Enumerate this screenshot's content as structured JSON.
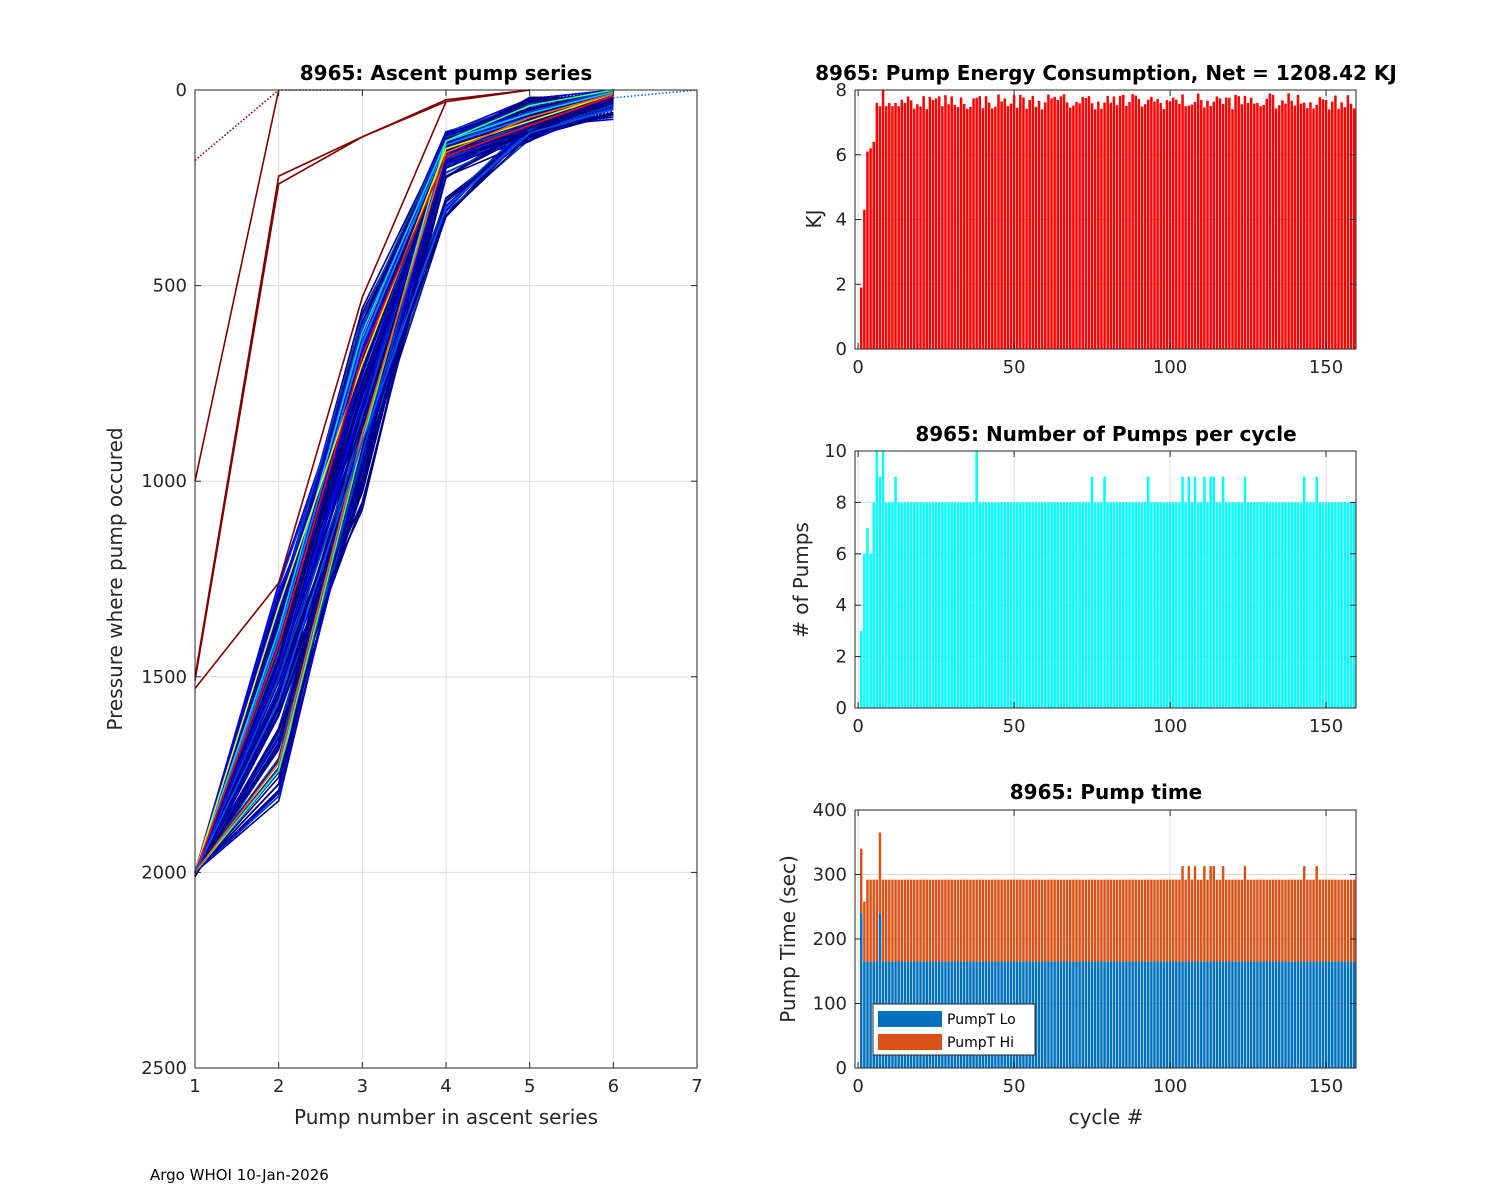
{
  "footer": "Argo WHOI 10-Jan-2026",
  "colors": {
    "energy_bar": "#ff0000",
    "pumps_bar": "#00ffff",
    "pumpt_lo": "#0072bd",
    "pumpt_hi": "#d95319",
    "grid": "#dcdcdc",
    "axis": "#262626"
  },
  "chart_data": [
    {
      "id": "ascent",
      "type": "line",
      "title": "8965: Ascent pump series",
      "xlabel": "Pump number in ascent series",
      "ylabel": "Pressure where pump occured",
      "xlim": [
        1,
        7
      ],
      "ylim": [
        0,
        2500
      ],
      "y_reversed": true,
      "xticks": [
        "1",
        "2",
        "3",
        "4",
        "5",
        "6",
        "7"
      ],
      "yticks": [
        "0",
        "500",
        "1000",
        "1500",
        "2000",
        "2500"
      ],
      "grid": true,
      "colormap": "jet (by cycle)",
      "series": [
        {
          "name": "early-1",
          "color": "#800000",
          "style": "solid",
          "x": [
            1,
            2
          ],
          "y": [
            1000,
            0
          ]
        },
        {
          "name": "early-2",
          "color": "#800000",
          "style": "solid",
          "x": [
            1,
            2,
            3,
            4,
            5
          ],
          "y": [
            1510,
            240,
            120,
            30,
            0
          ]
        },
        {
          "name": "early-3",
          "color": "#800000",
          "style": "solid",
          "x": [
            1,
            2,
            3,
            4
          ],
          "y": [
            1530,
            1260,
            530,
            30
          ]
        },
        {
          "name": "early-4",
          "color": "#800000",
          "style": "solid",
          "x": [
            1,
            2,
            3,
            4,
            5
          ],
          "y": [
            1500,
            220,
            120,
            25,
            0
          ]
        },
        {
          "name": "early-dotted",
          "color": "#800000",
          "style": "dotted",
          "x": [
            1,
            2,
            3
          ],
          "y": [
            180,
            0,
            0
          ]
        },
        {
          "name": "typical-lo",
          "color": "#00008f",
          "style": "solid",
          "x": [
            1,
            2,
            3,
            4,
            5,
            6
          ],
          "y": [
            2010,
            1600,
            1000,
            200,
            110,
            20
          ]
        },
        {
          "name": "typical-mid",
          "color": "#0000ff",
          "style": "solid",
          "x": [
            1,
            2,
            3,
            4,
            5,
            6
          ],
          "y": [
            2000,
            1480,
            800,
            170,
            90,
            15
          ]
        },
        {
          "name": "typical-hi",
          "color": "#0080ff",
          "style": "solid",
          "x": [
            1,
            2,
            3,
            4,
            5,
            6
          ],
          "y": [
            2000,
            1400,
            650,
            140,
            70,
            10
          ]
        },
        {
          "name": "cyan",
          "color": "#00cfff",
          "style": "solid",
          "x": [
            1,
            2,
            3,
            4,
            5,
            6
          ],
          "y": [
            2000,
            1380,
            620,
            130,
            60,
            5
          ]
        },
        {
          "name": "green",
          "color": "#40ff80",
          "style": "solid",
          "x": [
            1,
            2,
            3,
            4,
            5,
            6
          ],
          "y": [
            2000,
            1740,
            900,
            130,
            40,
            0
          ]
        },
        {
          "name": "yellow",
          "color": "#e0ff00",
          "style": "solid",
          "x": [
            1,
            2,
            3,
            4,
            5,
            6
          ],
          "y": [
            2000,
            1320,
            700,
            150,
            80,
            10
          ]
        },
        {
          "name": "orange",
          "color": "#ff6000",
          "style": "solid",
          "x": [
            1,
            2,
            3,
            4,
            5,
            6
          ],
          "y": [
            2000,
            1720,
            880,
            160,
            70,
            10
          ]
        },
        {
          "name": "red",
          "color": "#ff0000",
          "style": "solid",
          "x": [
            1,
            2,
            3,
            4,
            5,
            6
          ],
          "y": [
            2000,
            1420,
            680,
            170,
            90,
            15
          ]
        },
        {
          "name": "outlier-blue",
          "color": "#0050ff",
          "style": "solid",
          "x": [
            1,
            2,
            3,
            4,
            5,
            6
          ],
          "y": [
            2000,
            1560,
            900,
            300,
            110,
            50
          ]
        },
        {
          "name": "tail-dotted",
          "color": "#0070ff",
          "style": "dotted",
          "x": [
            6,
            7
          ],
          "y": [
            20,
            0
          ]
        }
      ]
    },
    {
      "id": "energy",
      "type": "bar",
      "title": "8965: Pump Energy Consumption,  Net = 1208.42 KJ",
      "xlabel": "",
      "ylabel": "KJ",
      "xlim": [
        0,
        160
      ],
      "ylim": [
        0,
        8
      ],
      "xticks": [
        "0",
        "50",
        "100",
        "150"
      ],
      "yticks": [
        "0",
        "2",
        "4",
        "6",
        "8"
      ],
      "grid": true,
      "net_kj": 1208.42,
      "first_values": [
        1.9,
        4.3,
        6.1,
        6.2,
        6.4,
        7.6,
        7.5,
        8.0,
        7.5,
        7.6,
        7.5,
        7.6,
        7.5,
        7.7,
        7.6,
        7.8
      ],
      "typical_range": [
        7.4,
        7.9
      ],
      "n_cycles": 159
    },
    {
      "id": "pumps",
      "type": "bar",
      "title": "8965: Number of Pumps per cycle",
      "xlabel": "",
      "ylabel": "# of Pumps",
      "xlim": [
        0,
        160
      ],
      "ylim": [
        0,
        10
      ],
      "xticks": [
        "0",
        "50",
        "100",
        "150"
      ],
      "yticks": [
        "0",
        "2",
        "4",
        "6",
        "8",
        "10"
      ],
      "grid": true,
      "first_values": [
        3,
        6,
        7,
        6,
        8,
        10,
        9,
        10,
        8,
        8,
        8,
        9,
        8
      ],
      "typical_value": 8,
      "cycles_with_9": [
        74,
        78,
        92,
        103,
        105,
        107,
        110,
        112,
        113,
        116,
        123,
        142,
        146
      ],
      "cycles_with_10": [
        5,
        7,
        37
      ],
      "n_cycles": 159
    },
    {
      "id": "pumptime",
      "type": "bar",
      "stacked": true,
      "title": "8965: Pump time",
      "xlabel": "cycle #",
      "ylabel": "Pump Time (sec)",
      "xlim": [
        0,
        160
      ],
      "ylim": [
        0,
        400
      ],
      "xticks": [
        "0",
        "50",
        "100",
        "150"
      ],
      "yticks": [
        "0",
        "100",
        "200",
        "300",
        "400"
      ],
      "grid": true,
      "legend": {
        "position": "bottom-left",
        "entries": [
          "PumpT Lo",
          "PumpT Hi"
        ]
      },
      "series": [
        {
          "name": "PumpT Lo",
          "typical": 165,
          "early": [
            240,
            165,
            165,
            165,
            165,
            165,
            240
          ]
        },
        {
          "name": "PumpT Hi",
          "typical_total": 292,
          "early_total": [
            340,
            258,
            292,
            292,
            292,
            292,
            365
          ]
        }
      ],
      "cycles_total_313": [
        103,
        105,
        107,
        110,
        112,
        113,
        116,
        123,
        142,
        146
      ]
    }
  ]
}
